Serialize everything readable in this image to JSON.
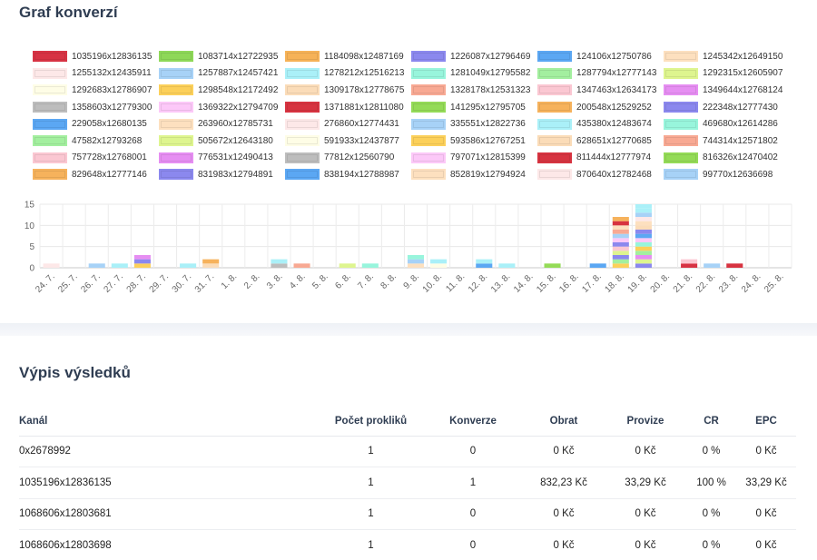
{
  "chart_title": "Graf konverzí",
  "results_title": "Výpis výsledků",
  "legend": [
    {
      "label": "1035196x12836135",
      "color": "#d73344"
    },
    {
      "label": "1083714x12722935",
      "color": "#8ed858"
    },
    {
      "label": "1184098x12487169",
      "color": "#f6b257"
    },
    {
      "label": "1226087x12796469",
      "color": "#8b88ee"
    },
    {
      "label": "124106x12750786",
      "color": "#5ba7f3"
    },
    {
      "label": "1245342x12649150",
      "color": "#fde0bf"
    },
    {
      "label": "1255132x12435911",
      "color": "#fde8e8"
    },
    {
      "label": "1257887x12457421",
      "color": "#a7d2f7"
    },
    {
      "label": "1278212x12516213",
      "color": "#aaf0f8"
    },
    {
      "label": "1281049x12795582",
      "color": "#98f5dc"
    },
    {
      "label": "1287794x12777143",
      "color": "#a3ef9f"
    },
    {
      "label": "1292315x12605907",
      "color": "#def58f"
    },
    {
      "label": "1292683x12786907",
      "color": "#fefde6"
    },
    {
      "label": "1298548x12172492",
      "color": "#fcd05a"
    },
    {
      "label": "1309178x12778675",
      "color": "#fbdcb8"
    },
    {
      "label": "1328178x12531323",
      "color": "#f8a993"
    },
    {
      "label": "1347463x12634173",
      "color": "#fbc7d2"
    },
    {
      "label": "1349644x12768124",
      "color": "#e68ef2"
    },
    {
      "label": "1358603x12779300",
      "color": "#bdbdbd"
    },
    {
      "label": "1369322x12794709",
      "color": "#fcc8f8"
    },
    {
      "label": "1371881x12811080",
      "color": "#d73340"
    },
    {
      "label": "141295x12795705",
      "color": "#94db57"
    },
    {
      "label": "200548x12529252",
      "color": "#f6b25c"
    },
    {
      "label": "222348x12777430",
      "color": "#8b88ee"
    },
    {
      "label": "229058x12680135",
      "color": "#5ba7f3"
    },
    {
      "label": "263960x12785731",
      "color": "#fde0bf"
    },
    {
      "label": "276860x12774431",
      "color": "#fde8e8"
    },
    {
      "label": "335551x12822736",
      "color": "#a7d2f7"
    },
    {
      "label": "435380x12483674",
      "color": "#aaf0f8"
    },
    {
      "label": "469680x12614286",
      "color": "#98f5dc"
    },
    {
      "label": "47582x12793268",
      "color": "#a3ef9f"
    },
    {
      "label": "505672x12643180",
      "color": "#def58f"
    },
    {
      "label": "591933x12437877",
      "color": "#fefde6"
    },
    {
      "label": "593586x12767251",
      "color": "#fcd05a"
    },
    {
      "label": "628651x12770685",
      "color": "#fbdcb8"
    },
    {
      "label": "744314x12571802",
      "color": "#f8a993"
    },
    {
      "label": "757728x12768001",
      "color": "#fbc7d2"
    },
    {
      "label": "776531x12490413",
      "color": "#e68ef2"
    },
    {
      "label": "77812x12560790",
      "color": "#bdbdbd"
    },
    {
      "label": "797071x12815399",
      "color": "#fcc8f8"
    },
    {
      "label": "811444x12777974",
      "color": "#d73340"
    },
    {
      "label": "816326x12470402",
      "color": "#94db57"
    },
    {
      "label": "829648x12777146",
      "color": "#f6b25c"
    },
    {
      "label": "831983x12794891",
      "color": "#8b88ee"
    },
    {
      "label": "838194x12788987",
      "color": "#5ba7f3"
    },
    {
      "label": "852819x12794924",
      "color": "#fde0bf"
    },
    {
      "label": "870640x12782468",
      "color": "#fde8e8"
    },
    {
      "label": "99770x12636698",
      "color": "#a7d2f7"
    }
  ],
  "chart_data": {
    "type": "bar",
    "stacked": true,
    "categories": [
      "24. 7.",
      "25. 7.",
      "26. 7.",
      "27. 7.",
      "28. 7.",
      "29. 7.",
      "30. 7.",
      "31. 7.",
      "1. 8.",
      "2. 8.",
      "3. 8.",
      "4. 8.",
      "5. 8.",
      "6. 8.",
      "7. 8.",
      "8. 8.",
      "9. 8.",
      "10. 8.",
      "11. 8.",
      "12. 8.",
      "13. 8.",
      "14. 8.",
      "15. 8.",
      "16. 8.",
      "17. 8.",
      "18. 8.",
      "19. 8.",
      "20. 8.",
      "21. 8.",
      "22. 8.",
      "23. 8.",
      "24. 8.",
      "25. 8."
    ],
    "yticks": [
      0,
      5,
      10,
      15
    ],
    "ylim": [
      0,
      15
    ],
    "grid": true,
    "legend_position": "top",
    "stacks": [
      [
        {
          "value": 1,
          "color": "#fde8e8"
        }
      ],
      [],
      [
        {
          "value": 1,
          "color": "#a7d2f7"
        }
      ],
      [
        {
          "value": 1,
          "color": "#aaf0f8"
        }
      ],
      [
        {
          "value": 1,
          "color": "#fcd05a"
        },
        {
          "value": 1,
          "color": "#8b88ee"
        },
        {
          "value": 1,
          "color": "#e68ef2"
        }
      ],
      [],
      [
        {
          "value": 1,
          "color": "#aaf0f8"
        }
      ],
      [
        {
          "value": 1,
          "color": "#fbdcb8"
        },
        {
          "value": 1,
          "color": "#f6b25c"
        }
      ],
      [],
      [],
      [
        {
          "value": 1,
          "color": "#bdbdbd"
        },
        {
          "value": 1,
          "color": "#aaf0f8"
        }
      ],
      [
        {
          "value": 1,
          "color": "#f8a993"
        }
      ],
      [],
      [
        {
          "value": 1,
          "color": "#def58f"
        }
      ],
      [
        {
          "value": 1,
          "color": "#98f5dc"
        }
      ],
      [],
      [
        {
          "value": 1,
          "color": "#fde0bf"
        },
        {
          "value": 1,
          "color": "#a7d2f7"
        },
        {
          "value": 1,
          "color": "#98f5dc"
        }
      ],
      [
        {
          "value": 1,
          "color": "#fefde6"
        },
        {
          "value": 1,
          "color": "#aaf0f8"
        }
      ],
      [],
      [
        {
          "value": 1,
          "color": "#5ba7f3"
        },
        {
          "value": 1,
          "color": "#aaf0f8"
        }
      ],
      [
        {
          "value": 1,
          "color": "#aaf0f8"
        }
      ],
      [],
      [
        {
          "value": 1,
          "color": "#94db57"
        }
      ],
      [],
      [
        {
          "value": 1,
          "color": "#5ba7f3"
        }
      ],
      [
        {
          "value": 1,
          "color": "#fcd05a"
        },
        {
          "value": 1,
          "color": "#a3ef9f"
        },
        {
          "value": 1,
          "color": "#8b88ee"
        },
        {
          "value": 1,
          "color": "#def58f"
        },
        {
          "value": 1,
          "color": "#fbc7d2"
        },
        {
          "value": 1,
          "color": "#8b88ee"
        },
        {
          "value": 1,
          "color": "#fcc8f8"
        },
        {
          "value": 1,
          "color": "#a7d2f7"
        },
        {
          "value": 1,
          "color": "#f8a993"
        },
        {
          "value": 1,
          "color": "#fde0bf"
        },
        {
          "value": 1,
          "color": "#d73340"
        },
        {
          "value": 1,
          "color": "#f6b25c"
        }
      ],
      [
        {
          "value": 1,
          "color": "#8b88ee"
        },
        {
          "value": 1,
          "color": "#def58f"
        },
        {
          "value": 1,
          "color": "#e68ef2"
        },
        {
          "value": 1,
          "color": "#a3ef9f"
        },
        {
          "value": 1,
          "color": "#fcd05a"
        },
        {
          "value": 1,
          "color": "#98f5dc"
        },
        {
          "value": 1,
          "color": "#fcc8f8"
        },
        {
          "value": 1,
          "color": "#5ba7f3"
        },
        {
          "value": 1,
          "color": "#8b88ee"
        },
        {
          "value": 1,
          "color": "#fbdcb8"
        },
        {
          "value": 1,
          "color": "#fde0bf"
        },
        {
          "value": 1,
          "color": "#fde8e8"
        },
        {
          "value": 1,
          "color": "#a7d2f7"
        },
        {
          "value": 1,
          "color": "#aaf0f8"
        },
        {
          "value": 1,
          "color": "#aaf0f8"
        }
      ],
      [],
      [
        {
          "value": 1,
          "color": "#d73344"
        },
        {
          "value": 1,
          "color": "#fbc7d2"
        }
      ],
      [
        {
          "value": 1,
          "color": "#a7d2f7"
        }
      ],
      [
        {
          "value": 1,
          "color": "#d73340"
        }
      ],
      [],
      []
    ]
  },
  "table": {
    "headers": [
      "Kanál",
      "Počet prokliků",
      "Konverze",
      "Obrat",
      "Provize",
      "CR",
      "EPC"
    ],
    "rows": [
      [
        "0x2678992",
        "1",
        "0",
        "0 Kč",
        "0 Kč",
        "0 %",
        "0 Kč"
      ],
      [
        "1035196x12836135",
        "1",
        "1",
        "832,23 Kč",
        "33,29 Kč",
        "100 %",
        "33,29 Kč"
      ],
      [
        "1068606x12803681",
        "1",
        "0",
        "0 Kč",
        "0 Kč",
        "0 %",
        "0 Kč"
      ],
      [
        "1068606x12803698",
        "1",
        "0",
        "0 Kč",
        "0 Kč",
        "0 %",
        "0 Kč"
      ]
    ]
  }
}
